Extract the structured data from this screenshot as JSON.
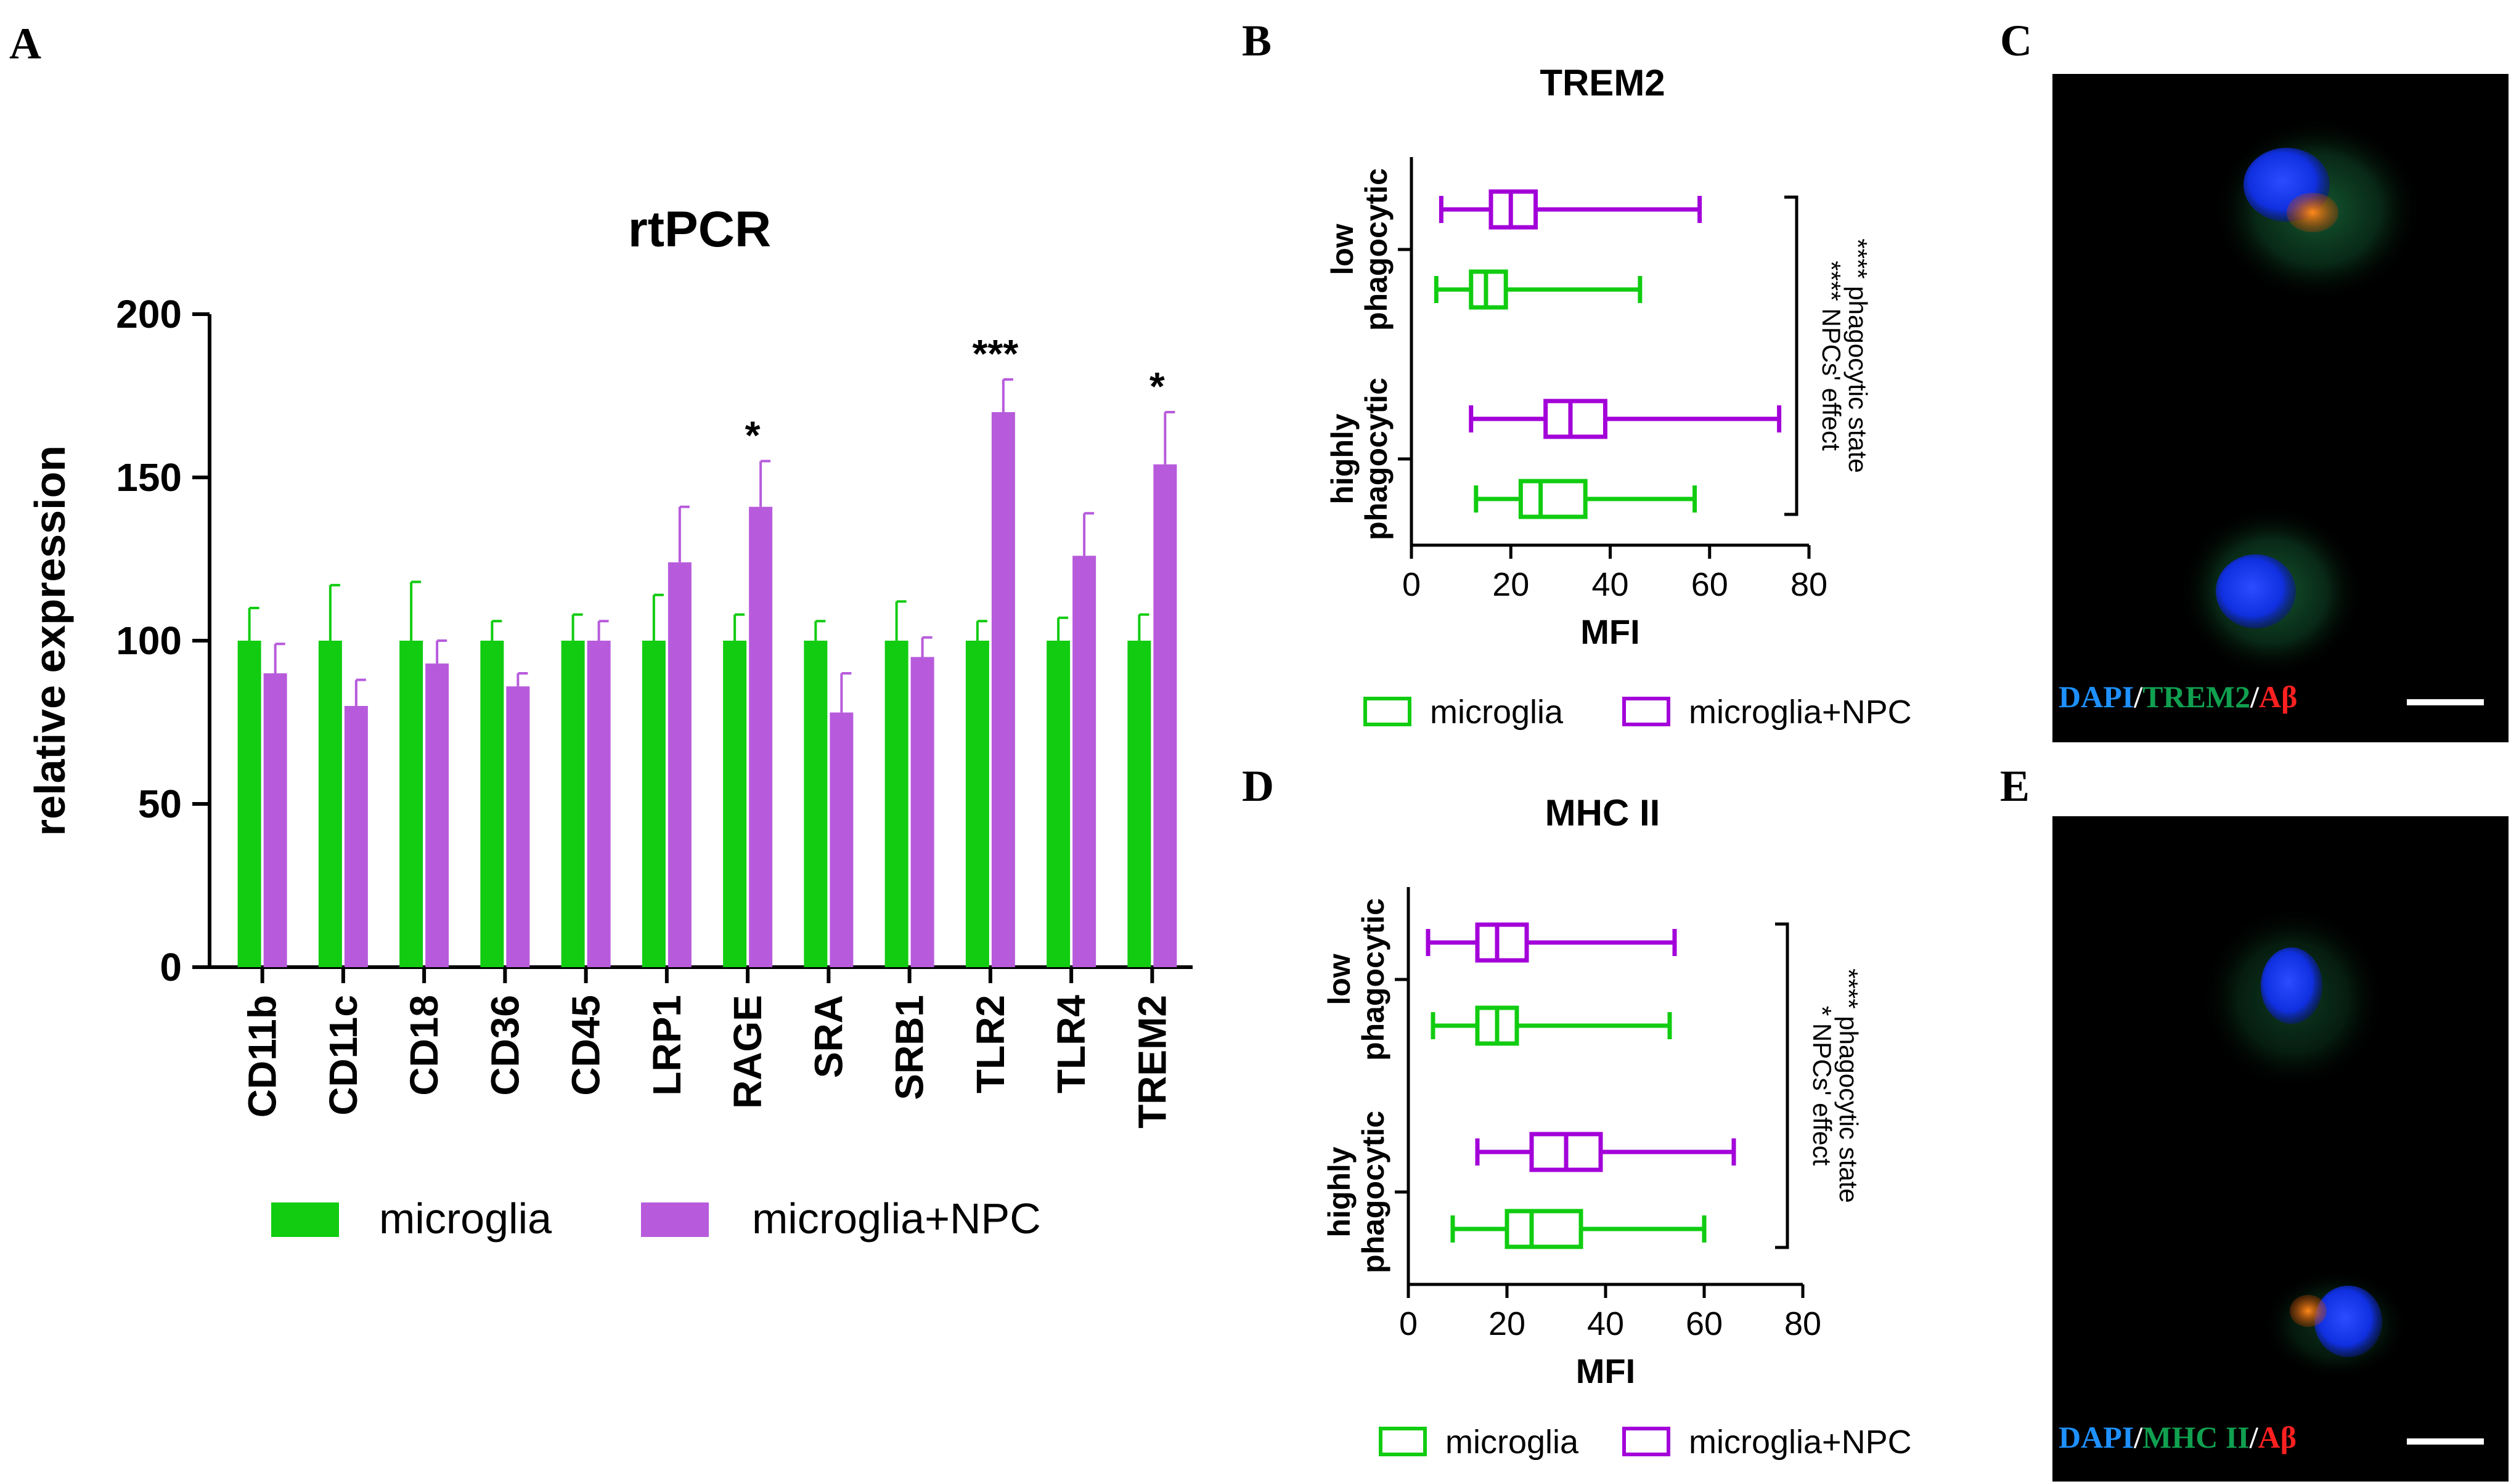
{
  "colors": {
    "microglia": "#11cc11",
    "npc_bar": "#b75bdc",
    "npc_box": "#a300d9",
    "axis": "#000000",
    "dapi": "#1e90ff",
    "marker": "#10a050",
    "abeta": "#ff2020"
  },
  "panel_letters": {
    "A": "A",
    "B": "B",
    "C": "C",
    "D": "D",
    "E": "E"
  },
  "chart_data": [
    {
      "panel": "A",
      "type": "bar",
      "title": "rtPCR",
      "ylabel": "relative expression",
      "xlabel": "",
      "ylim": [
        0,
        200
      ],
      "yticks": [
        "0",
        "50",
        "100",
        "150",
        "200"
      ],
      "categories": [
        "CD11b",
        "CD11c",
        "CD18",
        "CD36",
        "CD45",
        "LRP1",
        "RAGE",
        "SRA",
        "SRB1",
        "TLR2",
        "TLR4",
        "TREM2"
      ],
      "series": [
        {
          "name": "microglia",
          "values": [
            100,
            100,
            100,
            100,
            100,
            100,
            100,
            100,
            100,
            100,
            100,
            100
          ],
          "errors": [
            10,
            17,
            18,
            6,
            8,
            14,
            8,
            6,
            12,
            6,
            7,
            8
          ]
        },
        {
          "name": "microglia+NPC",
          "values": [
            90,
            80,
            93,
            86,
            100,
            124,
            141,
            78,
            95,
            170,
            126,
            154
          ],
          "errors": [
            9,
            8,
            7,
            4,
            6,
            17,
            14,
            12,
            6,
            10,
            13,
            16
          ]
        }
      ],
      "significance": [
        "",
        "",
        "",
        "",
        "",
        "",
        "*",
        "",
        "",
        "***",
        "",
        "*"
      ],
      "legend": [
        "microglia",
        "microglia+NPC"
      ]
    },
    {
      "panel": "B",
      "type": "box",
      "title": "TREM2",
      "xlabel": "MFI",
      "xlim": [
        0,
        80
      ],
      "xticks": [
        "0",
        "20",
        "40",
        "60",
        "80"
      ],
      "groups": [
        "low\nphagocytic",
        "highly\nphagocytic"
      ],
      "group_labels": [
        [
          "low",
          "phagocytic"
        ],
        [
          "highly",
          "phagocytic"
        ]
      ],
      "boxes": [
        {
          "group": "low phagocytic",
          "series": "microglia+NPC",
          "min": 6,
          "q1": 16,
          "median": 20,
          "q3": 25,
          "max": 58
        },
        {
          "group": "low phagocytic",
          "series": "microglia",
          "min": 5,
          "q1": 12,
          "median": 15,
          "q3": 19,
          "max": 46
        },
        {
          "group": "highly phagocytic",
          "series": "microglia+NPC",
          "min": 12,
          "q1": 27,
          "median": 32,
          "q3": 39,
          "max": 74
        },
        {
          "group": "highly phagocytic",
          "series": "microglia",
          "min": 13,
          "q1": 22,
          "median": 26,
          "q3": 35,
          "max": 57
        }
      ],
      "stats": {
        "npc_effect": "****",
        "phagocytic_state": "****",
        "lines": [
          "**** NPCs' effect",
          "**** phagocytic state"
        ]
      },
      "legend": [
        "microglia",
        "microglia+NPC"
      ]
    },
    {
      "panel": "D",
      "type": "box",
      "title": "MHC II",
      "xlabel": "MFI",
      "xlim": [
        0,
        80
      ],
      "xticks": [
        "0",
        "20",
        "40",
        "60",
        "80"
      ],
      "groups": [
        "low\nphagocytic",
        "highly\nphagocytic"
      ],
      "group_labels": [
        [
          "low",
          "phagocytic"
        ],
        [
          "highly",
          "phagocytic"
        ]
      ],
      "boxes": [
        {
          "group": "low phagocytic",
          "series": "microglia+NPC",
          "min": 4,
          "q1": 14,
          "median": 18,
          "q3": 24,
          "max": 54
        },
        {
          "group": "low phagocytic",
          "series": "microglia",
          "min": 5,
          "q1": 14,
          "median": 18,
          "q3": 22,
          "max": 53
        },
        {
          "group": "highly phagocytic",
          "series": "microglia+NPC",
          "min": 14,
          "q1": 25,
          "median": 32,
          "q3": 39,
          "max": 66
        },
        {
          "group": "highly phagocytic",
          "series": "microglia",
          "min": 9,
          "q1": 20,
          "median": 25,
          "q3": 35,
          "max": 60
        }
      ],
      "stats": {
        "npc_effect": "*",
        "phagocytic_state": "****",
        "lines": [
          "* NPCs' effect",
          "**** phagocytic state"
        ]
      },
      "legend": [
        "microglia",
        "microglia+NPC"
      ]
    }
  ],
  "images": {
    "C": {
      "caption": [
        "DAPI",
        "/",
        "TREM2",
        "/",
        "Aβ"
      ]
    },
    "E": {
      "caption": [
        "DAPI",
        "/",
        "MHC II",
        "/",
        "Aβ"
      ]
    }
  }
}
